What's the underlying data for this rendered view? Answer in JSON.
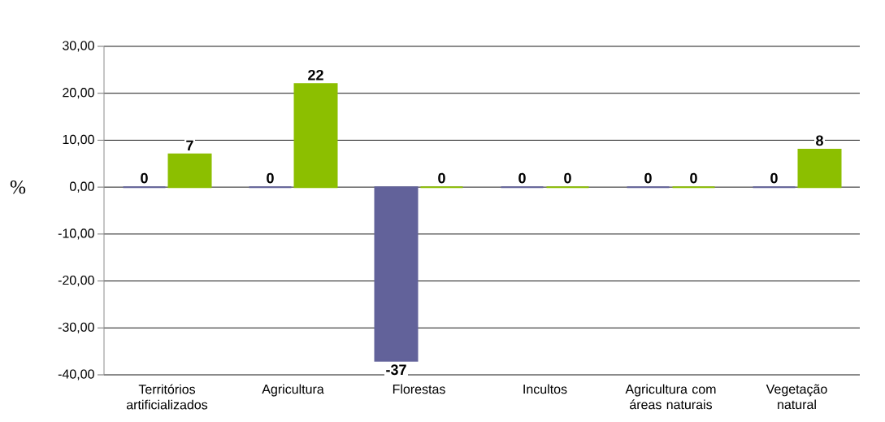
{
  "chart_data": {
    "type": "bar",
    "ylabel": "%",
    "categories": [
      "Territórios artificializados",
      "Agricultura",
      "Florestas",
      "Incultos",
      "Agricultura com áreas naturais",
      "Vegetação natural"
    ],
    "series": [
      {
        "color": "#62629a",
        "values": [
          0,
          0,
          -37,
          0,
          0,
          0
        ]
      },
      {
        "color": "#8cbf00",
        "values": [
          7,
          22,
          0,
          0,
          0,
          8
        ]
      }
    ],
    "ylim": [
      -40,
      30
    ],
    "yticks": [
      {
        "value": -40,
        "label": "-40,00"
      },
      {
        "value": -30,
        "label": "-30,00"
      },
      {
        "value": -20,
        "label": "-20,00"
      },
      {
        "value": -10,
        "label": "-10,00"
      },
      {
        "value": 0,
        "label": "0,00"
      },
      {
        "value": 10,
        "label": "10,00"
      },
      {
        "value": 20,
        "label": "20,00"
      },
      {
        "value": 30,
        "label": "30,00"
      }
    ],
    "grid": "y",
    "data_labels": true
  }
}
